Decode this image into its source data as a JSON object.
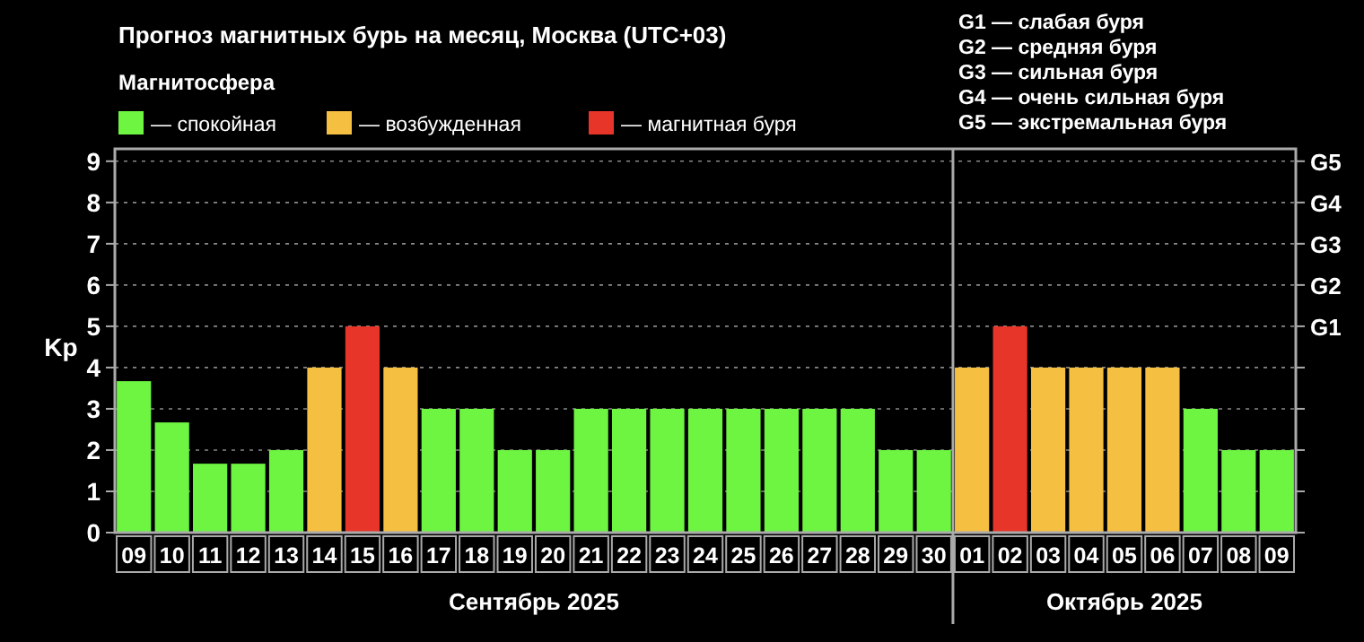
{
  "chart_data": {
    "type": "bar",
    "title": "Прогноз магнитных бурь на месяц, Москва (UTC+03)",
    "legend_title": "Магнитосфера",
    "ylabel": "Kp",
    "categories": [
      "09",
      "10",
      "11",
      "12",
      "13",
      "14",
      "15",
      "16",
      "17",
      "18",
      "19",
      "20",
      "21",
      "22",
      "23",
      "24",
      "25",
      "26",
      "27",
      "28",
      "29",
      "30",
      "01",
      "02",
      "03",
      "04",
      "05",
      "06",
      "07",
      "08",
      "09"
    ],
    "series": [
      {
        "name": "— спокойная",
        "color": "#6ef542",
        "values": [
          3.67,
          2.67,
          1.67,
          1.67,
          2,
          null,
          null,
          null,
          3,
          3,
          2,
          2,
          3,
          3,
          3,
          3,
          3,
          3,
          3,
          3,
          2,
          2,
          null,
          null,
          null,
          null,
          null,
          null,
          3,
          2,
          2
        ]
      },
      {
        "name": "— возбужденная",
        "color": "#f5bf42",
        "values": [
          null,
          null,
          null,
          null,
          null,
          4,
          null,
          4,
          null,
          null,
          null,
          null,
          null,
          null,
          null,
          null,
          null,
          null,
          null,
          null,
          null,
          null,
          4,
          null,
          4,
          4,
          4,
          4,
          null,
          null,
          null
        ]
      },
      {
        "name": "— магнитная буря",
        "color": "#e8352a",
        "values": [
          null,
          null,
          null,
          null,
          null,
          null,
          5,
          null,
          null,
          null,
          null,
          null,
          null,
          null,
          null,
          null,
          null,
          null,
          null,
          null,
          null,
          null,
          null,
          5,
          null,
          null,
          null,
          null,
          null,
          null,
          null
        ]
      }
    ],
    "ylim": [
      0,
      9.3
    ],
    "yticks": [
      0,
      1,
      2,
      3,
      4,
      5,
      6,
      7,
      8,
      9
    ],
    "grid": "y",
    "line_style": "dotted",
    "legend": "top left",
    "ref_lines": [
      {
        "axis": "x",
        "value": "01",
        "color": "#aaaaaa"
      }
    ],
    "annotations": [
      "Сентябрь 2025",
      "Октябрь 2025",
      "G1 — слабая буря",
      "G2 — средняя буря",
      "G3 — сильная буря",
      "G4 — очень сильная буря",
      "G5 — экстремальная буря",
      "G1",
      "G2",
      "G3",
      "G4",
      "G5"
    ]
  }
}
